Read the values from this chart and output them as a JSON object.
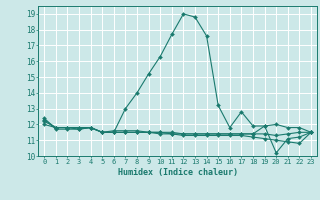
{
  "background_color": "#cce8e8",
  "grid_color": "#ffffff",
  "line_color": "#1a7a6e",
  "xlabel": "Humidex (Indice chaleur)",
  "ylim": [
    10,
    19.5
  ],
  "xlim": [
    -0.5,
    23.5
  ],
  "yticks": [
    10,
    11,
    12,
    13,
    14,
    15,
    16,
    17,
    18,
    19
  ],
  "xticks": [
    0,
    1,
    2,
    3,
    4,
    5,
    6,
    7,
    8,
    9,
    10,
    11,
    12,
    13,
    14,
    15,
    16,
    17,
    18,
    19,
    20,
    21,
    22,
    23
  ],
  "series1_x": [
    0,
    1,
    2,
    3,
    4,
    5,
    6,
    7,
    8,
    9,
    10,
    11,
    12,
    13,
    14,
    15,
    16,
    17,
    18,
    19,
    20,
    21,
    22,
    23
  ],
  "series1_y": [
    12.4,
    11.7,
    11.7,
    11.7,
    11.8,
    11.5,
    11.5,
    13.0,
    14.0,
    15.2,
    16.3,
    17.7,
    19.0,
    18.8,
    17.6,
    13.2,
    11.8,
    12.8,
    11.9,
    11.9,
    10.2,
    11.1,
    11.2,
    11.5
  ],
  "series2_x": [
    0,
    1,
    2,
    3,
    4,
    5,
    6,
    7,
    8,
    9,
    10,
    11,
    12,
    13,
    14,
    15,
    16,
    17,
    18,
    19,
    20,
    21,
    22,
    23
  ],
  "series2_y": [
    12.0,
    11.8,
    11.8,
    11.7,
    11.8,
    11.5,
    11.5,
    11.5,
    11.5,
    11.5,
    11.5,
    11.5,
    11.4,
    11.4,
    11.4,
    11.4,
    11.4,
    11.4,
    11.4,
    11.9,
    12.0,
    11.8,
    11.8,
    11.5
  ],
  "series3_x": [
    0,
    1,
    2,
    3,
    4,
    5,
    6,
    7,
    8,
    9,
    10,
    11,
    12,
    13,
    14,
    15,
    16,
    17,
    18,
    19,
    20,
    21,
    22,
    23
  ],
  "series3_y": [
    12.2,
    11.8,
    11.8,
    11.8,
    11.8,
    11.5,
    11.5,
    11.5,
    11.5,
    11.5,
    11.4,
    11.4,
    11.3,
    11.3,
    11.3,
    11.3,
    11.3,
    11.3,
    11.2,
    11.1,
    11.0,
    10.9,
    10.8,
    11.5
  ],
  "series4_x": [
    0,
    1,
    2,
    3,
    4,
    5,
    6,
    7,
    8,
    9,
    10,
    11,
    12,
    13,
    14,
    15,
    16,
    17,
    18,
    19,
    20,
    21,
    22,
    23
  ],
  "series4_y": [
    12.3,
    11.8,
    11.8,
    11.8,
    11.8,
    11.5,
    11.6,
    11.6,
    11.6,
    11.5,
    11.5,
    11.4,
    11.4,
    11.4,
    11.4,
    11.4,
    11.4,
    11.4,
    11.4,
    11.4,
    11.3,
    11.4,
    11.5,
    11.5
  ]
}
